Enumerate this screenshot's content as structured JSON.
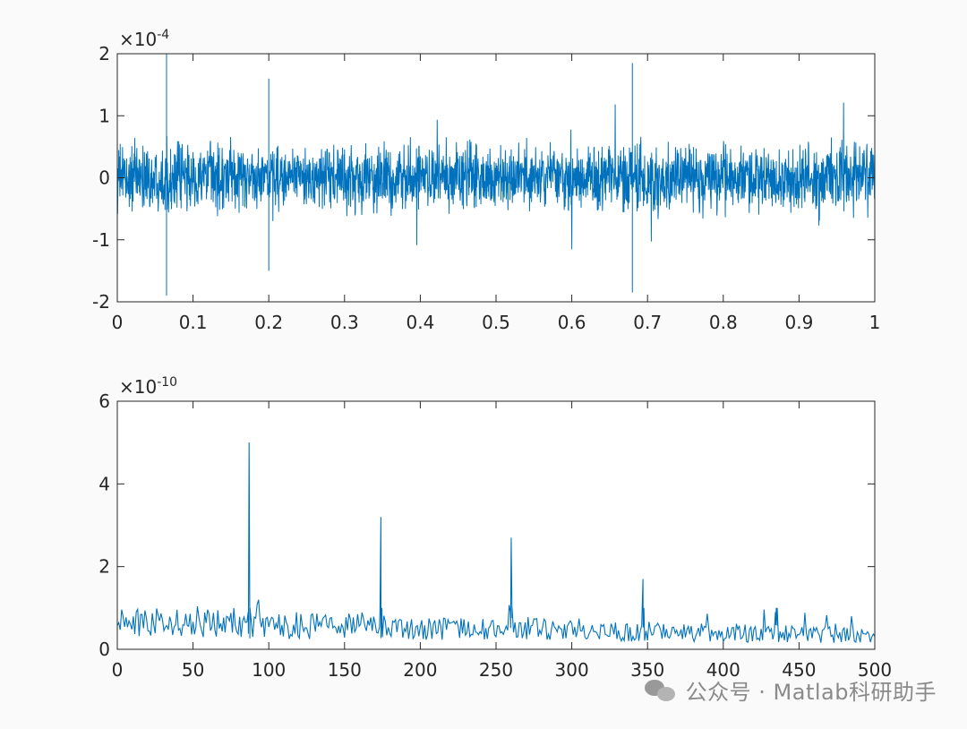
{
  "chart_data": [
    {
      "type": "line",
      "title": "",
      "xlabel": "",
      "ylabel": "",
      "exponent_base": "×10",
      "exponent_power": "-4",
      "xlim": [
        0,
        1
      ],
      "ylim": [
        -2,
        2
      ],
      "xticks": [
        "0",
        "0.1",
        "0.2",
        "0.3",
        "0.4",
        "0.5",
        "0.6",
        "0.7",
        "0.8",
        "0.9",
        "1"
      ],
      "yticks": [
        "2",
        "1",
        "0",
        "-1",
        "-2"
      ],
      "series": [
        {
          "color": "#0072BD",
          "values_description": "",
          "notable_peaks": [
            {
              "x": 0.065,
              "y": 2.0
            },
            {
              "x": 0.065,
              "y": -1.9
            },
            {
              "x": 0.2,
              "y": 1.6
            },
            {
              "x": 0.2,
              "y": -1.5
            },
            {
              "x": 0.68,
              "y": 1.85
            },
            {
              "x": 0.68,
              "y": -1.85
            }
          ],
          "noise_level": 0.45
        }
      ]
    },
    {
      "type": "line",
      "title": "",
      "xlabel": "",
      "ylabel": "",
      "exponent_base": "×10",
      "exponent_power": "-10",
      "xlim": [
        0,
        500
      ],
      "ylim": [
        0,
        6
      ],
      "xticks": [
        "0",
        "50",
        "100",
        "150",
        "200",
        "250",
        "300",
        "350",
        "400",
        "450",
        "500"
      ],
      "yticks": [
        "6",
        "4",
        "2",
        "0"
      ],
      "series": [
        {
          "color": "#0072BD",
          "values_description": "",
          "peaks": [
            {
              "x": 87,
              "y": 5.0
            },
            {
              "x": 174,
              "y": 3.2
            },
            {
              "x": 260,
              "y": 2.7
            },
            {
              "x": 347,
              "y": 1.7
            },
            {
              "x": 435,
              "y": 1.0
            }
          ],
          "baseline": 0.65
        }
      ]
    }
  ],
  "watermark": {
    "icon": "wechat-icon",
    "text": "公众号 · Matlab科研助手"
  }
}
